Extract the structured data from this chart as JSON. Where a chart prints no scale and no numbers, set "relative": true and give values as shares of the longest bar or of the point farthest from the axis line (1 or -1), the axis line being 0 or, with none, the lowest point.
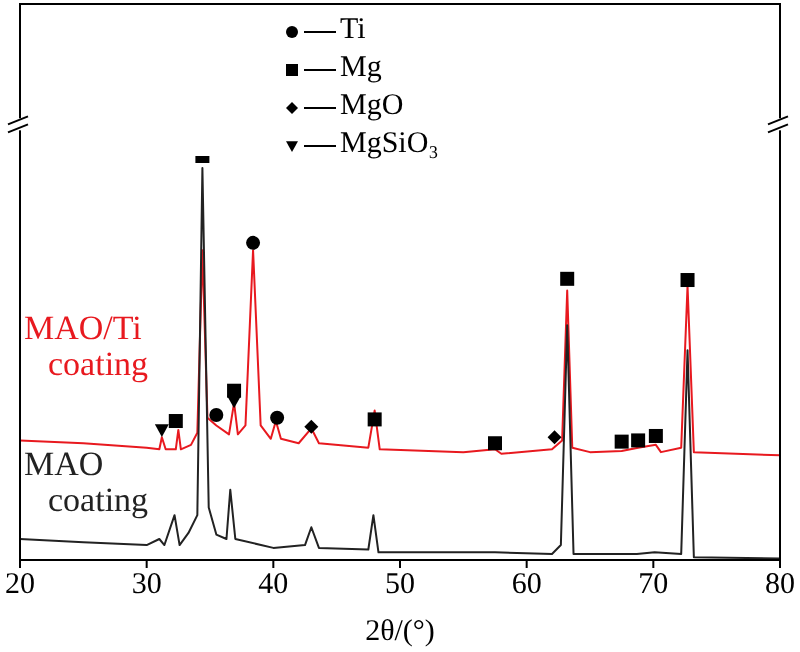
{
  "chart_data": {
    "type": "line",
    "relative": true,
    "xlabel": "2θ/(°)",
    "xlim": [
      20,
      80
    ],
    "xticks": [
      20,
      30,
      40,
      50,
      60,
      70,
      80
    ],
    "legend": "top",
    "series": [
      {
        "name": "MAO/Ti coating",
        "color": "#e8191f",
        "marker": "none",
        "x": [
          20,
          25,
          30,
          31,
          31.2,
          31.5,
          32.3,
          32.5,
          32.7,
          33.5,
          34.0,
          34.4,
          34.8,
          35.5,
          36.5,
          36.9,
          37.2,
          37.8,
          38.4,
          39,
          39.8,
          40.2,
          40.6,
          42,
          43,
          43.6,
          47.5,
          48,
          48.4,
          55,
          57.5,
          58,
          62,
          62.8,
          63.2,
          63.6,
          65,
          67.5,
          68.8,
          70.2,
          70.6,
          72.2,
          72.7,
          73.2,
          80
        ],
        "values": [
          0.296,
          0.289,
          0.278,
          0.274,
          0.304,
          0.274,
          0.274,
          0.322,
          0.274,
          0.285,
          0.315,
          0.767,
          0.352,
          0.333,
          0.311,
          0.389,
          0.311,
          0.333,
          0.767,
          0.333,
          0.3,
          0.344,
          0.3,
          0.289,
          0.326,
          0.289,
          0.278,
          0.37,
          0.274,
          0.267,
          0.274,
          0.263,
          0.274,
          0.296,
          0.667,
          0.278,
          0.267,
          0.27,
          0.278,
          0.285,
          0.267,
          0.278,
          0.678,
          0.267,
          0.259
        ]
      },
      {
        "name": "MAO coating",
        "color": "#222222",
        "marker": "none",
        "x": [
          20,
          25,
          30,
          31,
          31.4,
          32.2,
          32.6,
          33.3,
          34,
          34.4,
          34.9,
          35.5,
          36.3,
          36.6,
          37,
          40,
          42.5,
          43,
          43.6,
          47.5,
          47.9,
          48.3,
          57.5,
          62,
          62.7,
          63.2,
          63.7,
          68.7,
          70.1,
          72.2,
          72.7,
          73.2,
          80
        ],
        "values": [
          0.052,
          0.044,
          0.037,
          0.052,
          0.037,
          0.111,
          0.037,
          0.067,
          0.111,
          0.97,
          0.13,
          0.063,
          0.052,
          0.174,
          0.052,
          0.03,
          0.037,
          0.081,
          0.03,
          0.026,
          0.111,
          0.019,
          0.019,
          0.015,
          0.037,
          0.581,
          0.015,
          0.015,
          0.019,
          0.015,
          0.519,
          0.007,
          0.004
        ]
      },
      {
        "name": "Ti",
        "type": "scatter",
        "color": "#000000",
        "marker": "circle",
        "x": [
          38.4,
          35.5,
          40.3
        ],
        "values": [
          0.785,
          0.359,
          0.352
        ]
      },
      {
        "name": "Mg",
        "type": "scatter",
        "color": "#000000",
        "marker": "square",
        "x": [
          34.4,
          32.3,
          36.9,
          48,
          57.5,
          63.2,
          67.5,
          68.8,
          70.2,
          72.7
        ],
        "values": [
          1.0,
          0.344,
          0.419,
          0.348,
          0.289,
          0.696,
          0.293,
          0.296,
          0.307,
          0.693
        ]
      },
      {
        "name": "MgO",
        "type": "scatter",
        "color": "#000000",
        "marker": "diamond",
        "x": [
          43,
          62.2
        ],
        "values": [
          0.33,
          0.304
        ]
      },
      {
        "name": "MgSiO₃",
        "type": "scatter",
        "color": "#000000",
        "marker": "triangle-down",
        "x": [
          31.2,
          36.9
        ],
        "values": [
          0.322,
          0.393
        ]
      }
    ]
  }
}
